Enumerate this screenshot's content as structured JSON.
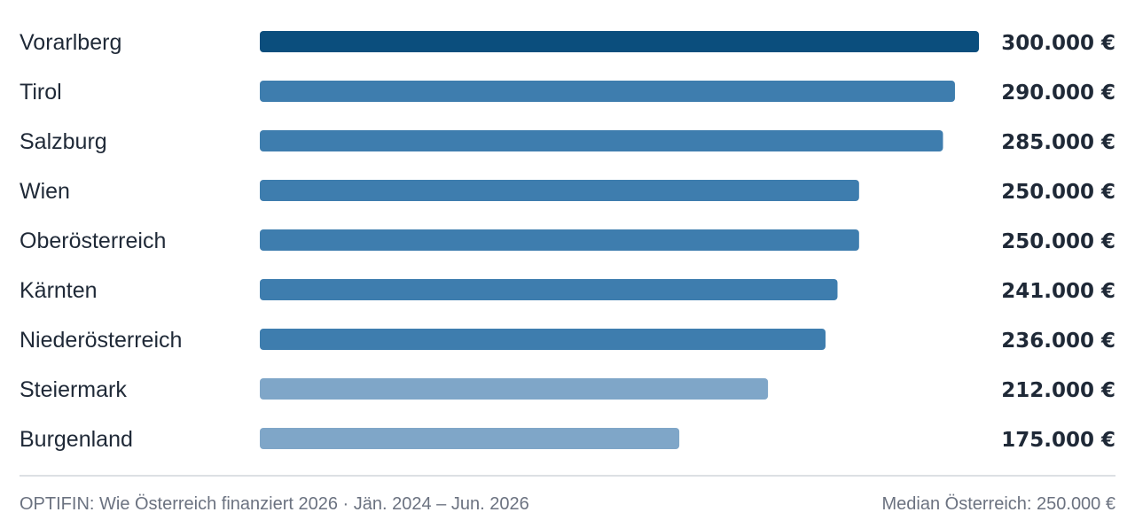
{
  "chart_data": {
    "type": "bar",
    "orientation": "horizontal",
    "categories": [
      "Vorarlberg",
      "Tirol",
      "Salzburg",
      "Wien",
      "Oberösterreich",
      "Kärnten",
      "Niederösterreich",
      "Steiermark",
      "Burgenland"
    ],
    "values": [
      300000,
      290000,
      285000,
      250000,
      250000,
      241000,
      236000,
      212000,
      175000
    ],
    "value_labels": [
      "300.000 €",
      "290.000 €",
      "285.000 €",
      "250.000 €",
      "250.000 €",
      "241.000 €",
      "236.000 €",
      "212.000 €",
      "175.000 €"
    ],
    "xlim": [
      0,
      300000
    ],
    "grid": false,
    "bar_colors": [
      "#0b4e7d",
      "#3e7dae",
      "#3e7dae",
      "#3e7dae",
      "#3e7dae",
      "#3e7dae",
      "#3e7dae",
      "#7fa6c8",
      "#7fa6c8"
    ]
  },
  "footer": {
    "source": "OPTIFIN: Wie Österreich finanziert 2026 · Jän. 2024 – Jun. 2026",
    "median": "Median Österreich: 250.000 €"
  },
  "colors": {
    "text": "#1f2937",
    "muted": "#6b7280",
    "divider": "#d1d5db"
  }
}
